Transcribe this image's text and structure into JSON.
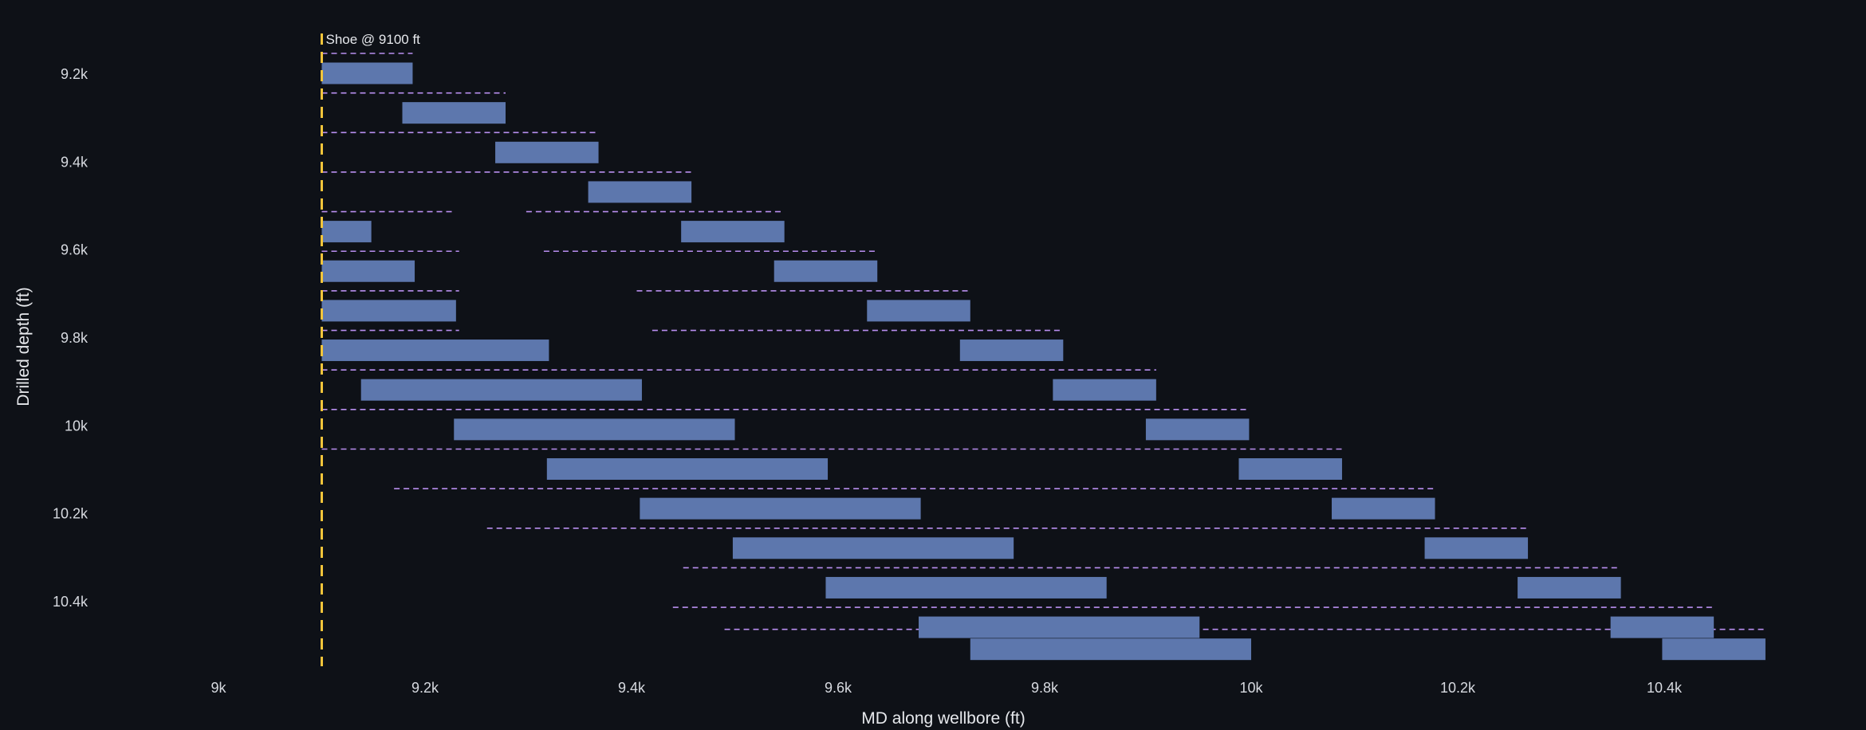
{
  "chart_data": {
    "type": "bar",
    "orientation": "horizontal-gantt",
    "xlabel": "MD along wellbore (ft)",
    "ylabel": "Drilled depth (ft)",
    "xlim": [
      8900,
      10550
    ],
    "ylim": [
      9150,
      10560
    ],
    "x_ticks": [
      {
        "value": 9000,
        "label": "9k"
      },
      {
        "value": 9200,
        "label": "9.2k"
      },
      {
        "value": 9400,
        "label": "9.4k"
      },
      {
        "value": 9600,
        "label": "9.6k"
      },
      {
        "value": 9800,
        "label": "9.8k"
      },
      {
        "value": 10000,
        "label": "10k"
      },
      {
        "value": 10200,
        "label": "10.2k"
      },
      {
        "value": 10400,
        "label": "10.4k"
      }
    ],
    "y_ticks": [
      {
        "value": 9200,
        "label": "9.2k"
      },
      {
        "value": 9400,
        "label": "9.4k"
      },
      {
        "value": 9600,
        "label": "9.6k"
      },
      {
        "value": 9800,
        "label": "9.8k"
      },
      {
        "value": 10000,
        "label": "10k"
      },
      {
        "value": 10200,
        "label": "10.2k"
      },
      {
        "value": 10400,
        "label": "10.4k"
      }
    ],
    "shoe": {
      "md": 9100,
      "label": "Shoe @ 9100 ft"
    },
    "grid": false,
    "colors": {
      "bar": "#5d77ad",
      "dash": "#b98ff0",
      "shoe": "#f3c53b",
      "background": "#0e1117",
      "text": "#d7dae0"
    },
    "rows": [
      {
        "depth": 9200,
        "bars": [
          [
            9100,
            9188
          ]
        ],
        "dashes": [
          [
            9100,
            9188
          ]
        ]
      },
      {
        "depth": 9290,
        "bars": [
          [
            9178,
            9278
          ]
        ],
        "dashes": [
          [
            9100,
            9278
          ]
        ]
      },
      {
        "depth": 9380,
        "bars": [
          [
            9268,
            9368
          ]
        ],
        "dashes": [
          [
            9100,
            9368
          ]
        ]
      },
      {
        "depth": 9470,
        "bars": [
          [
            9358,
            9458
          ]
        ],
        "dashes": [
          [
            9100,
            9458
          ]
        ]
      },
      {
        "depth": 9560,
        "bars": [
          [
            9100,
            9148
          ],
          [
            9448,
            9548
          ]
        ],
        "dashes": [
          [
            9100,
            9228
          ],
          [
            9298,
            9548
          ]
        ]
      },
      {
        "depth": 9650,
        "bars": [
          [
            9100,
            9190
          ],
          [
            9538,
            9638
          ]
        ],
        "dashes": [
          [
            9100,
            9233
          ],
          [
            9315,
            9638
          ]
        ]
      },
      {
        "depth": 9740,
        "bars": [
          [
            9100,
            9230
          ],
          [
            9628,
            9728
          ]
        ],
        "dashes": [
          [
            9100,
            9233
          ],
          [
            9405,
            9728
          ]
        ]
      },
      {
        "depth": 9830,
        "bars": [
          [
            9100,
            9320
          ],
          [
            9718,
            9818
          ]
        ],
        "dashes": [
          [
            9100,
            9233
          ],
          [
            9420,
            9818
          ]
        ]
      },
      {
        "depth": 9920,
        "bars": [
          [
            9138,
            9410
          ],
          [
            9808,
            9908
          ]
        ],
        "dashes": [
          [
            9100,
            9908
          ]
        ]
      },
      {
        "depth": 10010,
        "bars": [
          [
            9228,
            9500
          ],
          [
            9898,
            9998
          ]
        ],
        "dashes": [
          [
            9100,
            9998
          ]
        ]
      },
      {
        "depth": 10100,
        "bars": [
          [
            9318,
            9590
          ],
          [
            9988,
            10088
          ]
        ],
        "dashes": [
          [
            9100,
            10088
          ]
        ]
      },
      {
        "depth": 10190,
        "bars": [
          [
            9408,
            9680
          ],
          [
            10078,
            10178
          ]
        ],
        "dashes": [
          [
            9170,
            10178
          ]
        ]
      },
      {
        "depth": 10280,
        "bars": [
          [
            9498,
            9770
          ],
          [
            10168,
            10268
          ]
        ],
        "dashes": [
          [
            9260,
            10268
          ]
        ]
      },
      {
        "depth": 10370,
        "bars": [
          [
            9588,
            9860
          ],
          [
            10258,
            10358
          ]
        ],
        "dashes": [
          [
            9450,
            10358
          ]
        ]
      },
      {
        "depth": 10460,
        "bars": [
          [
            9678,
            9950
          ],
          [
            10348,
            10448
          ]
        ],
        "dashes": [
          [
            9440,
            10448
          ]
        ]
      },
      {
        "depth": 10510,
        "bars": [
          [
            9728,
            10000
          ],
          [
            10398,
            10498
          ]
        ],
        "dashes": [
          [
            9490,
            10498
          ]
        ]
      }
    ]
  }
}
